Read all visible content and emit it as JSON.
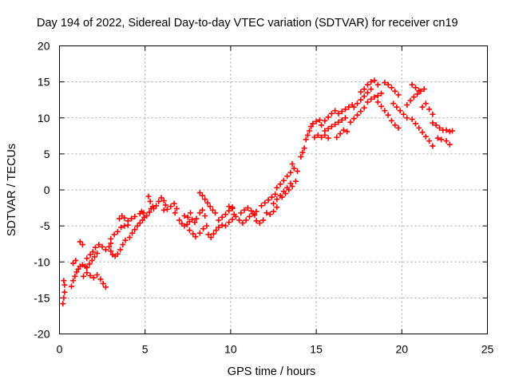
{
  "chart_data": {
    "type": "scatter",
    "title": "Day 194 of 2022, Sidereal Day-to-day VTEC variation (SDTVAR) for receiver cn19",
    "xlabel": "GPS time / hours",
    "ylabel": "SDTVAR / TECUs",
    "xlim": [
      0,
      25
    ],
    "ylim": [
      -20,
      20
    ],
    "xticks": [
      "0",
      "5",
      "10",
      "15",
      "20",
      "25"
    ],
    "yticks": [
      "-20",
      "-15",
      "-10",
      "-5",
      "0",
      "5",
      "10",
      "15",
      "20"
    ],
    "grid": true,
    "marker": "plus",
    "color": "#ff0000",
    "series": [
      {
        "name": "SDTVAR",
        "points": [
          [
            0.2,
            -15.8
          ],
          [
            0.25,
            -15.0
          ],
          [
            0.3,
            -14.2
          ],
          [
            0.3,
            -13.2
          ],
          [
            0.25,
            -12.6
          ],
          [
            0.7,
            -13.4
          ],
          [
            0.8,
            -12.6
          ],
          [
            0.9,
            -12.0
          ],
          [
            1.0,
            -11.4
          ],
          [
            1.1,
            -11.0
          ],
          [
            1.2,
            -10.6
          ],
          [
            1.35,
            -10.4
          ],
          [
            1.5,
            -10.6
          ],
          [
            0.8,
            -10.2
          ],
          [
            0.95,
            -9.8
          ],
          [
            1.2,
            -7.2
          ],
          [
            1.35,
            -7.6
          ],
          [
            1.4,
            -12.0
          ],
          [
            1.6,
            -11.5
          ],
          [
            1.8,
            -11.9
          ],
          [
            2.0,
            -12.2
          ],
          [
            2.2,
            -11.8
          ],
          [
            2.4,
            -12.4
          ],
          [
            2.55,
            -13.0
          ],
          [
            2.7,
            -13.5
          ],
          [
            1.6,
            -9.5
          ],
          [
            1.8,
            -9.0
          ],
          [
            1.95,
            -8.6
          ],
          [
            2.1,
            -8.0
          ],
          [
            2.3,
            -7.6
          ],
          [
            2.5,
            -7.9
          ],
          [
            2.7,
            -8.3
          ],
          [
            2.9,
            -7.9
          ],
          [
            3.0,
            -7.4
          ],
          [
            1.6,
            -10.8
          ],
          [
            1.75,
            -10.3
          ],
          [
            1.9,
            -9.8
          ],
          [
            2.05,
            -9.3
          ],
          [
            2.2,
            -8.8
          ],
          [
            3.0,
            -8.5
          ],
          [
            3.1,
            -9.0
          ],
          [
            3.25,
            -9.2
          ],
          [
            3.4,
            -8.9
          ],
          [
            3.55,
            -8.3
          ],
          [
            3.7,
            -7.6
          ],
          [
            3.85,
            -7.0
          ],
          [
            3.0,
            -6.8
          ],
          [
            3.2,
            -6.2
          ],
          [
            3.4,
            -5.8
          ],
          [
            3.6,
            -5.2
          ],
          [
            3.8,
            -5.0
          ],
          [
            4.0,
            -4.9
          ],
          [
            3.5,
            -4.0
          ],
          [
            3.65,
            -3.6
          ],
          [
            3.8,
            -3.9
          ],
          [
            4.0,
            -4.3
          ],
          [
            4.2,
            -4.0
          ],
          [
            4.4,
            -3.7
          ],
          [
            4.1,
            -6.6
          ],
          [
            4.25,
            -6.0
          ],
          [
            4.4,
            -5.5
          ],
          [
            4.55,
            -5.0
          ],
          [
            4.7,
            -4.6
          ],
          [
            4.85,
            -4.2
          ],
          [
            4.95,
            -3.8
          ],
          [
            4.7,
            -3.3
          ],
          [
            4.8,
            -3.0
          ],
          [
            4.9,
            -3.2
          ],
          [
            5.1,
            -3.6
          ],
          [
            5.25,
            -3.1
          ],
          [
            5.35,
            -2.6
          ],
          [
            5.45,
            -2.3
          ],
          [
            5.3,
            -1.6
          ],
          [
            5.2,
            -0.9
          ],
          [
            5.5,
            -2.6
          ],
          [
            5.65,
            -2.2
          ],
          [
            5.8,
            -1.6
          ],
          [
            5.95,
            -1.1
          ],
          [
            6.1,
            -1.5
          ],
          [
            6.2,
            -2.1
          ],
          [
            6.1,
            -2.8
          ],
          [
            6.3,
            -2.7
          ],
          [
            6.5,
            -2.3
          ],
          [
            6.7,
            -1.9
          ],
          [
            6.85,
            -2.6
          ],
          [
            6.75,
            -3.2
          ],
          [
            7.0,
            -4.2
          ],
          [
            7.15,
            -4.7
          ],
          [
            7.3,
            -5.0
          ],
          [
            7.45,
            -4.8
          ],
          [
            7.6,
            -4.4
          ],
          [
            7.75,
            -4.1
          ],
          [
            7.9,
            -4.5
          ],
          [
            7.3,
            -3.6
          ],
          [
            7.5,
            -3.8
          ],
          [
            7.65,
            -3.2
          ],
          [
            7.6,
            -5.6
          ],
          [
            7.8,
            -6.1
          ],
          [
            7.95,
            -6.5
          ],
          [
            8.2,
            -6.0
          ],
          [
            8.4,
            -5.4
          ],
          [
            8.6,
            -5.0
          ],
          [
            8.0,
            -4.0
          ],
          [
            8.2,
            -3.2
          ],
          [
            8.35,
            -2.8
          ],
          [
            8.5,
            -3.6
          ],
          [
            8.2,
            -0.4
          ],
          [
            8.35,
            -0.8
          ],
          [
            8.5,
            -1.3
          ],
          [
            8.65,
            -1.8
          ],
          [
            8.8,
            -2.3
          ],
          [
            8.95,
            -2.8
          ],
          [
            9.1,
            -3.2
          ],
          [
            8.7,
            -6.2
          ],
          [
            8.85,
            -6.6
          ],
          [
            9.0,
            -6.1
          ],
          [
            9.15,
            -5.6
          ],
          [
            9.3,
            -5.2
          ],
          [
            9.3,
            -4.2
          ],
          [
            9.5,
            -3.8
          ],
          [
            9.7,
            -3.4
          ],
          [
            9.9,
            -2.9
          ],
          [
            10.1,
            -2.6
          ],
          [
            9.5,
            -4.9
          ],
          [
            9.7,
            -5.0
          ],
          [
            9.9,
            -4.5
          ],
          [
            10.1,
            -4.1
          ],
          [
            9.9,
            -2.3
          ],
          [
            10.1,
            -2.4
          ],
          [
            10.2,
            -3.4
          ],
          [
            10.3,
            -3.7
          ],
          [
            10.5,
            -4.2
          ],
          [
            10.7,
            -4.6
          ],
          [
            10.9,
            -4.2
          ],
          [
            11.1,
            -3.7
          ],
          [
            11.3,
            -3.3
          ],
          [
            11.5,
            -3.0
          ],
          [
            10.6,
            -3.2
          ],
          [
            10.8,
            -2.8
          ],
          [
            11.0,
            -2.5
          ],
          [
            11.2,
            -2.9
          ],
          [
            11.4,
            -3.5
          ],
          [
            11.5,
            -4.3
          ],
          [
            11.7,
            -4.6
          ],
          [
            11.9,
            -4.2
          ],
          [
            11.8,
            -2.2
          ],
          [
            12.0,
            -1.8
          ],
          [
            12.2,
            -1.4
          ],
          [
            12.4,
            -1.0
          ],
          [
            12.6,
            -0.6
          ],
          [
            12.1,
            -3.2
          ],
          [
            12.3,
            -3.4
          ],
          [
            12.5,
            -3.0
          ],
          [
            12.7,
            -2.4
          ],
          [
            12.5,
            -1.9
          ],
          [
            12.7,
            -1.3
          ],
          [
            12.9,
            -0.8
          ],
          [
            13.1,
            -0.2
          ],
          [
            13.3,
            0.3
          ],
          [
            13.5,
            0.9
          ],
          [
            12.7,
            0.3
          ],
          [
            12.9,
            0.8
          ],
          [
            13.1,
            1.3
          ],
          [
            13.3,
            1.9
          ],
          [
            13.0,
            -1.0
          ],
          [
            13.2,
            -0.5
          ],
          [
            13.4,
            0.0
          ],
          [
            13.6,
            0.5
          ],
          [
            13.8,
            1.2
          ],
          [
            13.5,
            2.4
          ],
          [
            13.7,
            3.0
          ],
          [
            13.9,
            2.6
          ],
          [
            13.6,
            3.6
          ],
          [
            14.1,
            4.6
          ],
          [
            14.2,
            5.2
          ],
          [
            14.3,
            5.8
          ],
          [
            14.4,
            7.0
          ],
          [
            14.5,
            7.6
          ],
          [
            14.6,
            8.2
          ],
          [
            14.7,
            8.8
          ],
          [
            14.8,
            9.2
          ],
          [
            15.0,
            9.5
          ],
          [
            15.2,
            9.7
          ],
          [
            14.9,
            7.3
          ],
          [
            15.1,
            7.6
          ],
          [
            15.3,
            7.3
          ],
          [
            15.5,
            7.6
          ],
          [
            15.7,
            7.2
          ],
          [
            15.3,
            9.0
          ],
          [
            15.5,
            9.6
          ],
          [
            15.7,
            10.1
          ],
          [
            15.9,
            10.6
          ],
          [
            16.1,
            11.0
          ],
          [
            15.5,
            8.2
          ],
          [
            15.7,
            8.5
          ],
          [
            15.9,
            8.8
          ],
          [
            16.1,
            9.1
          ],
          [
            16.3,
            9.4
          ],
          [
            16.5,
            9.7
          ],
          [
            16.7,
            10.0
          ],
          [
            16.2,
            7.3
          ],
          [
            16.4,
            7.8
          ],
          [
            16.6,
            8.3
          ],
          [
            16.8,
            8.1
          ],
          [
            16.3,
            10.6
          ],
          [
            16.5,
            10.9
          ],
          [
            16.7,
            11.2
          ],
          [
            16.9,
            11.5
          ],
          [
            17.1,
            11.8
          ],
          [
            17.0,
            9.4
          ],
          [
            17.2,
            9.9
          ],
          [
            17.4,
            10.4
          ],
          [
            17.6,
            10.9
          ],
          [
            17.8,
            11.4
          ],
          [
            17.2,
            11.5
          ],
          [
            17.4,
            12.0
          ],
          [
            17.6,
            12.5
          ],
          [
            17.8,
            13.0
          ],
          [
            18.0,
            13.5
          ],
          [
            18.2,
            14.0
          ],
          [
            17.6,
            13.6
          ],
          [
            17.8,
            14.0
          ],
          [
            18.0,
            14.6
          ],
          [
            18.2,
            15.0
          ],
          [
            18.4,
            15.2
          ],
          [
            18.6,
            14.6
          ],
          [
            18.0,
            12.2
          ],
          [
            18.2,
            12.6
          ],
          [
            18.4,
            12.9
          ],
          [
            18.6,
            13.1
          ],
          [
            18.8,
            13.4
          ],
          [
            18.6,
            12.2
          ],
          [
            18.8,
            11.6
          ],
          [
            19.0,
            11.0
          ],
          [
            19.2,
            10.4
          ],
          [
            19.4,
            9.6
          ],
          [
            19.6,
            9.0
          ],
          [
            19.8,
            8.6
          ],
          [
            19.0,
            14.9
          ],
          [
            19.2,
            14.6
          ],
          [
            19.4,
            14.2
          ],
          [
            19.6,
            13.7
          ],
          [
            19.8,
            13.2
          ],
          [
            19.5,
            12.0
          ],
          [
            19.7,
            11.5
          ],
          [
            19.9,
            11.0
          ],
          [
            20.1,
            10.5
          ],
          [
            20.3,
            10.0
          ],
          [
            20.3,
            11.8
          ],
          [
            20.5,
            12.4
          ],
          [
            20.7,
            12.9
          ],
          [
            20.9,
            13.3
          ],
          [
            21.1,
            13.7
          ],
          [
            21.3,
            14.0
          ],
          [
            20.6,
            14.6
          ],
          [
            20.8,
            14.2
          ],
          [
            21.0,
            13.8
          ],
          [
            20.6,
            9.8
          ],
          [
            20.8,
            9.2
          ],
          [
            21.0,
            8.6
          ],
          [
            21.2,
            8.0
          ],
          [
            21.4,
            7.4
          ],
          [
            21.6,
            6.8
          ],
          [
            21.8,
            6.1
          ],
          [
            21.2,
            11.5
          ],
          [
            21.4,
            12.0
          ],
          [
            21.6,
            11.2
          ],
          [
            21.8,
            10.5
          ],
          [
            21.8,
            9.3
          ],
          [
            22.0,
            9.0
          ],
          [
            22.2,
            8.6
          ],
          [
            22.4,
            8.3
          ],
          [
            22.1,
            7.2
          ],
          [
            22.3,
            7.0
          ],
          [
            22.6,
            6.8
          ],
          [
            22.8,
            6.3
          ],
          [
            22.6,
            8.3
          ],
          [
            22.8,
            8.1
          ],
          [
            22.95,
            8.2
          ]
        ]
      }
    ]
  }
}
